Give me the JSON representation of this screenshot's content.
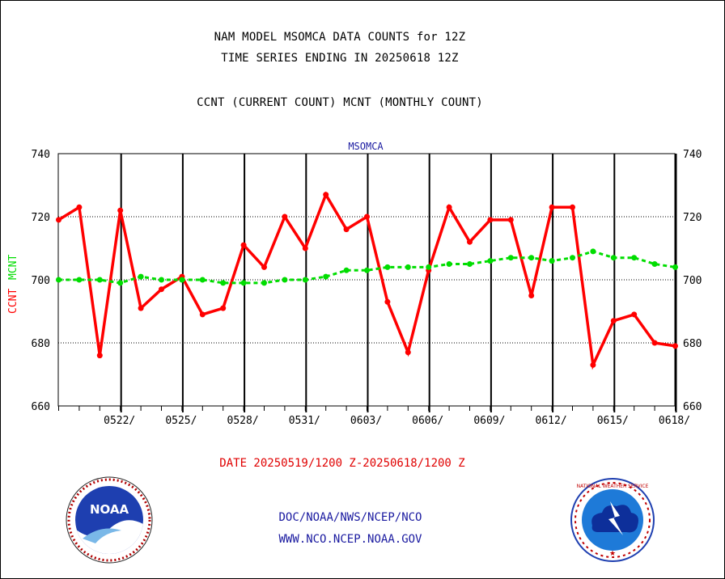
{
  "header": {
    "line1": "NAM MODEL MSOMCA DATA COUNTS for 12Z",
    "line2": "TIME SERIES ENDING IN 20250618 12Z",
    "line3": "CCNT (CURRENT COUNT) MCNT (MONTHLY COUNT)"
  },
  "chart_data": {
    "type": "line",
    "title": "MSOMCA",
    "ylabel_series": [
      {
        "text": "CCNT",
        "color": "#ff0000"
      },
      {
        "text": "MCNT",
        "color": "#00dd00"
      }
    ],
    "xlabel": "DATE 20250519/1200 Z-20250618/1200 Z",
    "ylim": [
      660,
      740
    ],
    "yticks": [
      660,
      680,
      700,
      720,
      740
    ],
    "x_start": "20250519/1200",
    "x_end": "20250618/1200",
    "xtick_labels": [
      "0522/",
      "0525/",
      "0528/",
      "0531/",
      "0603/",
      "0606/",
      "0609/",
      "0612/",
      "0615/",
      "0618/"
    ],
    "grid": true,
    "x": [
      "0519",
      "0520",
      "0521",
      "0522",
      "0523",
      "0524",
      "0525",
      "0526",
      "0527",
      "0528",
      "0529",
      "0530",
      "0531",
      "0601",
      "0602",
      "0603",
      "0604",
      "0605",
      "0606",
      "0607",
      "0608",
      "0609",
      "0610",
      "0611",
      "0612",
      "0613",
      "0614",
      "0615",
      "0616",
      "0617",
      "0618"
    ],
    "series": [
      {
        "name": "CCNT",
        "color": "#ff0000",
        "values": [
          719,
          723,
          676,
          722,
          691,
          697,
          701,
          689,
          691,
          711,
          704,
          720,
          710,
          727,
          716,
          720,
          693,
          677,
          703,
          723,
          712,
          719,
          719,
          695,
          723,
          723,
          673,
          687,
          689,
          680,
          679
        ]
      },
      {
        "name": "MCNT",
        "color": "#00dd00",
        "values": [
          700,
          700,
          700,
          699,
          701,
          700,
          700,
          700,
          699,
          699,
          699,
          700,
          700,
          701,
          703,
          703,
          704,
          704,
          704,
          705,
          705,
          706,
          707,
          707,
          706,
          707,
          709,
          707,
          707,
          705,
          704
        ]
      }
    ]
  },
  "footer": {
    "line1": "DOC/NOAA/NWS/NCEP/NCO",
    "line2": "WWW.NCO.NCEP.NOAA.GOV"
  },
  "logos": {
    "left": {
      "name": "noaa-logo",
      "text": "NOAA"
    },
    "right": {
      "name": "nws-logo",
      "text": "NATIONAL WEATHER SERVICE"
    }
  }
}
